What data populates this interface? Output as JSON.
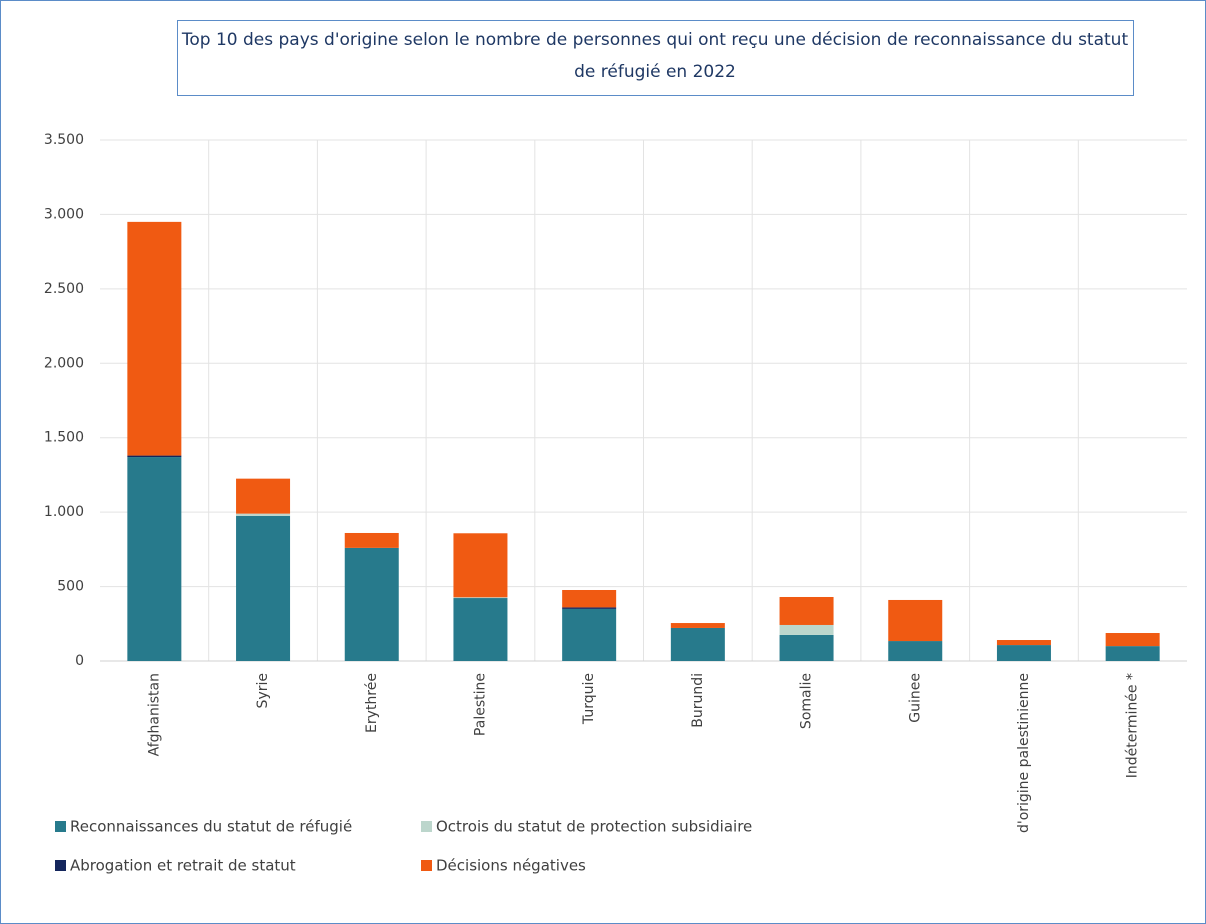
{
  "chart_data": {
    "type": "stacked-bar",
    "title": "Top 10 des pays d'origine selon le nombre de personnes qui ont reçu une décision de reconnaissance du statut de réfugié en 2022",
    "categories": [
      "Afghanistan",
      "Syrie",
      "Erythrée",
      "Palestine",
      "Turquie",
      "Burundi",
      "Somalie",
      "Guinee",
      "d'origine palestinienne",
      "Indéterminée *"
    ],
    "series": [
      {
        "name": "Reconnaissances du statut de réfugié",
        "color": "#277a8c",
        "values": [
          1370,
          975,
          760,
          423,
          350,
          222,
          175,
          134,
          107,
          100
        ]
      },
      {
        "name": "Octrois du statut de protection subsidiaire",
        "color": "#bcd6cc",
        "values": [
          0,
          15,
          0,
          5,
          0,
          0,
          67,
          0,
          0,
          0
        ]
      },
      {
        "name": "Abrogation et retrait de statut",
        "color": "#14265c",
        "values": [
          10,
          0,
          0,
          0,
          10,
          0,
          0,
          0,
          0,
          0
        ]
      },
      {
        "name": "Décisions négatives",
        "color": "#f05a12",
        "values": [
          1570,
          235,
          100,
          430,
          117,
          33,
          188,
          276,
          34,
          88
        ]
      }
    ],
    "ylim": [
      0,
      3500
    ],
    "yticks": [
      0,
      500,
      {
        "value": 1000,
        "label": "1.000"
      },
      {
        "value": 1500,
        "label": "1.500"
      },
      {
        "value": 2000,
        "label": "2.000"
      },
      {
        "value": 2500,
        "label": "2.500"
      },
      {
        "value": 3000,
        "label": "3.000"
      },
      {
        "value": 3500,
        "label": "3.500"
      }
    ],
    "grid": true
  }
}
